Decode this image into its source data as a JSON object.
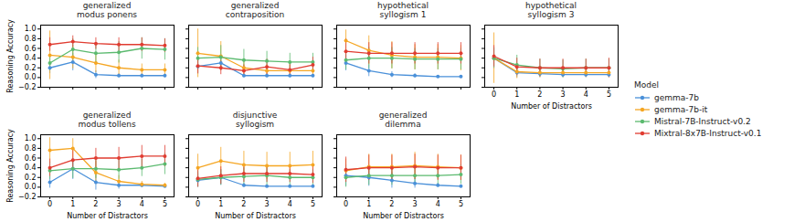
{
  "chart_data": [
    {
      "type": "line",
      "title": "generalized\nmodus ponens",
      "ylabel": "Reasoning Accuracy",
      "x": [
        0,
        1,
        2,
        3,
        4,
        5
      ],
      "xlim": [
        -0.4,
        5.4
      ],
      "xticks": [
        0,
        1,
        2,
        3,
        4,
        5
      ],
      "ylim": [
        -0.2,
        1.08
      ],
      "yticks": [
        {
          "value": -0.2,
          "label": "−0.2"
        },
        {
          "value": 0.0,
          "label": "0.0"
        },
        {
          "value": 0.2,
          "label": "0.2"
        },
        {
          "value": 0.4,
          "label": "0.4"
        },
        {
          "value": 0.6,
          "label": "0.6"
        },
        {
          "value": 0.8,
          "label": "0.8"
        },
        {
          "value": 1.0,
          "label": "1.0"
        }
      ],
      "grid": false,
      "marker": "circle",
      "tick_labels": "y",
      "legend": "right",
      "legend_title": "Model",
      "series": [
        {
          "name": "gemma-7b",
          "color": "#4a90d9",
          "values": [
            0.2,
            0.32,
            0.06,
            0.04,
            0.04,
            0.04
          ],
          "yerr": [
            0.12,
            0.18,
            0.08,
            0.04,
            0.04,
            0.04
          ]
        },
        {
          "name": "gemma-7b-it",
          "color": "#f5a623",
          "values": [
            0.46,
            0.42,
            0.3,
            0.2,
            0.16,
            0.16
          ],
          "yerr": [
            0.5,
            0.24,
            0.2,
            0.16,
            0.12,
            0.12
          ]
        },
        {
          "name": "Mistral-7B-Instruct-v0.2",
          "color": "#5bba6f",
          "values": [
            0.3,
            0.58,
            0.5,
            0.52,
            0.6,
            0.58
          ],
          "yerr": [
            0.16,
            0.22,
            0.22,
            0.22,
            0.22,
            0.22
          ]
        },
        {
          "name": "Mixtral-8x7B-Instruct-v0.1",
          "color": "#e03c31",
          "values": [
            0.68,
            0.74,
            0.7,
            0.68,
            0.68,
            0.66
          ],
          "yerr": [
            0.14,
            0.12,
            0.12,
            0.14,
            0.14,
            0.14
          ]
        }
      ]
    },
    {
      "type": "line",
      "title": "generalized\ncontraposition",
      "x": [
        0,
        1,
        2,
        3,
        4,
        5
      ],
      "xlim": [
        -0.4,
        5.4
      ],
      "xticks": [
        0,
        1,
        2,
        3,
        4,
        5
      ],
      "ylim": [
        -0.2,
        1.08
      ],
      "yticks": [
        {
          "value": -0.2,
          "label": "−0.2"
        },
        {
          "value": 0.0,
          "label": "0.0"
        },
        {
          "value": 0.2,
          "label": "0.2"
        },
        {
          "value": 0.4,
          "label": "0.4"
        },
        {
          "value": 0.6,
          "label": "0.6"
        },
        {
          "value": 0.8,
          "label": "0.8"
        },
        {
          "value": 1.0,
          "label": "1.0"
        }
      ],
      "grid": false,
      "marker": "circle",
      "tick_labels": false,
      "series": [
        {
          "name": "gemma-7b",
          "color": "#4a90d9",
          "values": [
            0.23,
            0.3,
            0.04,
            0.04,
            0.04,
            0.04
          ],
          "yerr": [
            0.16,
            0.16,
            0.04,
            0.04,
            0.04,
            0.04
          ]
        },
        {
          "name": "gemma-7b-it",
          "color": "#f5a623",
          "values": [
            0.5,
            0.44,
            0.2,
            0.14,
            0.14,
            0.14
          ],
          "yerr": [
            0.5,
            0.3,
            0.18,
            0.12,
            0.12,
            0.12
          ]
        },
        {
          "name": "Mistral-7B-Instruct-v0.2",
          "color": "#5bba6f",
          "values": [
            0.4,
            0.42,
            0.36,
            0.34,
            0.32,
            0.32
          ],
          "yerr": [
            0.22,
            0.24,
            0.22,
            0.2,
            0.18,
            0.18
          ]
        },
        {
          "name": "Mixtral-8x7B-Instruct-v0.1",
          "color": "#e03c31",
          "values": [
            0.24,
            0.2,
            0.14,
            0.22,
            0.16,
            0.26
          ],
          "yerr": [
            0.16,
            0.14,
            0.12,
            0.16,
            0.12,
            0.16
          ]
        }
      ]
    },
    {
      "type": "line",
      "title": "hypothetical\nsyllogism 1",
      "x": [
        0,
        1,
        2,
        3,
        4,
        5
      ],
      "xlim": [
        -0.4,
        5.4
      ],
      "xticks": [
        0,
        1,
        2,
        3,
        4,
        5
      ],
      "ylim": [
        -0.2,
        1.08
      ],
      "yticks": [
        {
          "value": -0.2,
          "label": "−0.2"
        },
        {
          "value": 0.0,
          "label": "0.0"
        },
        {
          "value": 0.2,
          "label": "0.2"
        },
        {
          "value": 0.4,
          "label": "0.4"
        },
        {
          "value": 0.6,
          "label": "0.6"
        },
        {
          "value": 0.8,
          "label": "0.8"
        },
        {
          "value": 1.0,
          "label": "1.0"
        }
      ],
      "grid": false,
      "marker": "circle",
      "tick_labels": false,
      "series": [
        {
          "name": "gemma-7b",
          "color": "#4a90d9",
          "values": [
            0.3,
            0.14,
            0.06,
            0.04,
            0.02,
            0.02
          ],
          "yerr": [
            0.16,
            0.12,
            0.06,
            0.04,
            0.02,
            0.02
          ]
        },
        {
          "name": "gemma-7b-it",
          "color": "#f5a623",
          "values": [
            0.76,
            0.56,
            0.46,
            0.42,
            0.42,
            0.4
          ],
          "yerr": [
            0.22,
            0.3,
            0.28,
            0.26,
            0.26,
            0.26
          ]
        },
        {
          "name": "Mistral-7B-Instruct-v0.2",
          "color": "#5bba6f",
          "values": [
            0.36,
            0.4,
            0.4,
            0.38,
            0.38,
            0.38
          ],
          "yerr": [
            0.2,
            0.22,
            0.22,
            0.22,
            0.22,
            0.22
          ]
        },
        {
          "name": "Mixtral-8x7B-Instruct-v0.1",
          "color": "#e03c31",
          "values": [
            0.54,
            0.5,
            0.5,
            0.5,
            0.5,
            0.5
          ],
          "yerr": [
            0.26,
            0.22,
            0.22,
            0.22,
            0.22,
            0.22
          ]
        }
      ]
    },
    {
      "type": "line",
      "title": "hypothetical\nsyllogism 3",
      "xlabel": "Number of Distractors",
      "x": [
        0,
        1,
        2,
        3,
        4,
        5
      ],
      "xlim": [
        -0.4,
        5.4
      ],
      "xticks": [
        0,
        1,
        2,
        3,
        4,
        5
      ],
      "ylim": [
        -0.2,
        1.08
      ],
      "yticks": [
        {
          "value": -0.2,
          "label": "−0.2"
        },
        {
          "value": 0.0,
          "label": "0.0"
        },
        {
          "value": 0.2,
          "label": "0.2"
        },
        {
          "value": 0.4,
          "label": "0.4"
        },
        {
          "value": 0.6,
          "label": "0.6"
        },
        {
          "value": 0.8,
          "label": "0.8"
        },
        {
          "value": 1.0,
          "label": "1.0"
        }
      ],
      "grid": false,
      "marker": "circle",
      "tick_labels": "x",
      "series": [
        {
          "name": "gemma-7b",
          "color": "#4a90d9",
          "values": [
            0.4,
            0.1,
            0.08,
            0.06,
            0.06,
            0.06
          ],
          "yerr": [
            0.22,
            0.1,
            0.08,
            0.06,
            0.06,
            0.06
          ]
        },
        {
          "name": "gemma-7b-it",
          "color": "#f5a623",
          "values": [
            0.4,
            0.12,
            0.1,
            0.1,
            0.1,
            0.1
          ],
          "yerr": [
            0.52,
            0.14,
            0.1,
            0.1,
            0.1,
            0.1
          ]
        },
        {
          "name": "Mistral-7B-Instruct-v0.2",
          "color": "#5bba6f",
          "values": [
            0.4,
            0.26,
            0.2,
            0.18,
            0.2,
            0.2
          ],
          "yerr": [
            0.2,
            0.2,
            0.18,
            0.18,
            0.18,
            0.18
          ]
        },
        {
          "name": "Mixtral-8x7B-Instruct-v0.1",
          "color": "#e03c31",
          "values": [
            0.44,
            0.22,
            0.2,
            0.2,
            0.2,
            0.2
          ],
          "yerr": [
            0.22,
            0.18,
            0.18,
            0.18,
            0.18,
            0.2
          ]
        }
      ]
    },
    {
      "type": "line",
      "title": "generalized\nmodus tollens",
      "xlabel": "Number of Distractors",
      "ylabel": "Reasoning Accuracy",
      "x": [
        0,
        1,
        2,
        3,
        4,
        5
      ],
      "xlim": [
        -0.4,
        5.4
      ],
      "xticks": [
        0,
        1,
        2,
        3,
        4,
        5
      ],
      "ylim": [
        -0.2,
        1.08
      ],
      "yticks": [
        {
          "value": -0.2,
          "label": "−0.2"
        },
        {
          "value": 0.0,
          "label": "0.0"
        },
        {
          "value": 0.2,
          "label": "0.2"
        },
        {
          "value": 0.4,
          "label": "0.4"
        },
        {
          "value": 0.6,
          "label": "0.6"
        },
        {
          "value": 0.8,
          "label": "0.8"
        },
        {
          "value": 1.0,
          "label": "1.0"
        }
      ],
      "grid": false,
      "marker": "circle",
      "series": [
        {
          "name": "gemma-7b",
          "color": "#4a90d9",
          "values": [
            0.1,
            0.38,
            0.1,
            0.04,
            0.04,
            0.02
          ],
          "yerr": [
            0.12,
            0.22,
            0.16,
            0.08,
            0.04,
            0.02
          ]
        },
        {
          "name": "gemma-7b-it",
          "color": "#f5a623",
          "values": [
            0.76,
            0.8,
            0.3,
            0.12,
            0.06,
            0.04
          ],
          "yerr": [
            0.26,
            0.2,
            0.24,
            0.12,
            0.06,
            0.04
          ]
        },
        {
          "name": "Mistral-7B-Instruct-v0.2",
          "color": "#5bba6f",
          "values": [
            0.34,
            0.38,
            0.38,
            0.36,
            0.4,
            0.48
          ],
          "yerr": [
            0.18,
            0.2,
            0.2,
            0.2,
            0.18,
            0.22
          ]
        },
        {
          "name": "Mixtral-8x7B-Instruct-v0.1",
          "color": "#e03c31",
          "values": [
            0.4,
            0.56,
            0.6,
            0.6,
            0.64,
            0.64
          ],
          "yerr": [
            0.18,
            0.2,
            0.2,
            0.22,
            0.22,
            0.22
          ]
        }
      ]
    },
    {
      "type": "line",
      "title": "disjunctive\nsyllogism",
      "xlabel": "Number of Distractors",
      "x": [
        0,
        1,
        2,
        3,
        4,
        5
      ],
      "xlim": [
        -0.4,
        5.4
      ],
      "xticks": [
        0,
        1,
        2,
        3,
        4,
        5
      ],
      "ylim": [
        -0.2,
        1.08
      ],
      "yticks": [
        {
          "value": -0.2,
          "label": "−0.2"
        },
        {
          "value": 0.0,
          "label": "0.0"
        },
        {
          "value": 0.2,
          "label": "0.2"
        },
        {
          "value": 0.4,
          "label": "0.4"
        },
        {
          "value": 0.6,
          "label": "0.6"
        },
        {
          "value": 0.8,
          "label": "0.8"
        },
        {
          "value": 1.0,
          "label": "1.0"
        }
      ],
      "grid": false,
      "marker": "circle",
      "tick_labels": "x",
      "series": [
        {
          "name": "gemma-7b",
          "color": "#4a90d9",
          "values": [
            0.14,
            0.2,
            0.04,
            0.02,
            0.02,
            0.02
          ],
          "yerr": [
            0.14,
            0.16,
            0.04,
            0.02,
            0.02,
            0.02
          ]
        },
        {
          "name": "gemma-7b-it",
          "color": "#f5a623",
          "values": [
            0.4,
            0.54,
            0.46,
            0.44,
            0.44,
            0.46
          ],
          "yerr": [
            0.28,
            0.28,
            0.28,
            0.28,
            0.28,
            0.28
          ]
        },
        {
          "name": "Mistral-7B-Instruct-v0.2",
          "color": "#5bba6f",
          "values": [
            0.16,
            0.2,
            0.22,
            0.24,
            0.2,
            0.2
          ],
          "yerr": [
            0.16,
            0.16,
            0.18,
            0.2,
            0.16,
            0.16
          ]
        },
        {
          "name": "Mixtral-8x7B-Instruct-v0.1",
          "color": "#e03c31",
          "values": [
            0.18,
            0.24,
            0.28,
            0.28,
            0.28,
            0.26
          ],
          "yerr": [
            0.18,
            0.18,
            0.18,
            0.18,
            0.18,
            0.18
          ]
        }
      ]
    },
    {
      "type": "line",
      "title": "generalized\ndilemma",
      "xlabel": "Number of Distractors",
      "x": [
        0,
        1,
        2,
        3,
        4,
        5
      ],
      "xlim": [
        -0.4,
        5.4
      ],
      "xticks": [
        0,
        1,
        2,
        3,
        4,
        5
      ],
      "ylim": [
        -0.2,
        1.08
      ],
      "yticks": [
        {
          "value": -0.2,
          "label": "−0.2"
        },
        {
          "value": 0.0,
          "label": "0.0"
        },
        {
          "value": 0.2,
          "label": "0.2"
        },
        {
          "value": 0.4,
          "label": "0.4"
        },
        {
          "value": 0.6,
          "label": "0.6"
        },
        {
          "value": 0.8,
          "label": "0.8"
        },
        {
          "value": 1.0,
          "label": "1.0"
        }
      ],
      "grid": false,
      "marker": "circle",
      "tick_labels": "x",
      "series": [
        {
          "name": "gemma-7b",
          "color": "#4a90d9",
          "values": [
            0.24,
            0.2,
            0.14,
            0.08,
            0.04,
            0.02
          ],
          "yerr": [
            0.22,
            0.18,
            0.16,
            0.1,
            0.04,
            0.02
          ]
        },
        {
          "name": "gemma-7b-it",
          "color": "#f5a623",
          "values": [
            0.34,
            0.42,
            0.42,
            0.44,
            0.42,
            0.4
          ],
          "yerr": [
            0.24,
            0.26,
            0.26,
            0.28,
            0.26,
            0.26
          ]
        },
        {
          "name": "Mistral-7B-Instruct-v0.2",
          "color": "#5bba6f",
          "values": [
            0.2,
            0.24,
            0.24,
            0.24,
            0.24,
            0.26
          ],
          "yerr": [
            0.2,
            0.2,
            0.2,
            0.2,
            0.2,
            0.2
          ]
        },
        {
          "name": "Mixtral-8x7B-Instruct-v0.1",
          "color": "#e03c31",
          "values": [
            0.36,
            0.4,
            0.4,
            0.42,
            0.4,
            0.4
          ],
          "yerr": [
            0.26,
            0.26,
            0.26,
            0.26,
            0.26,
            0.26
          ]
        }
      ]
    }
  ]
}
